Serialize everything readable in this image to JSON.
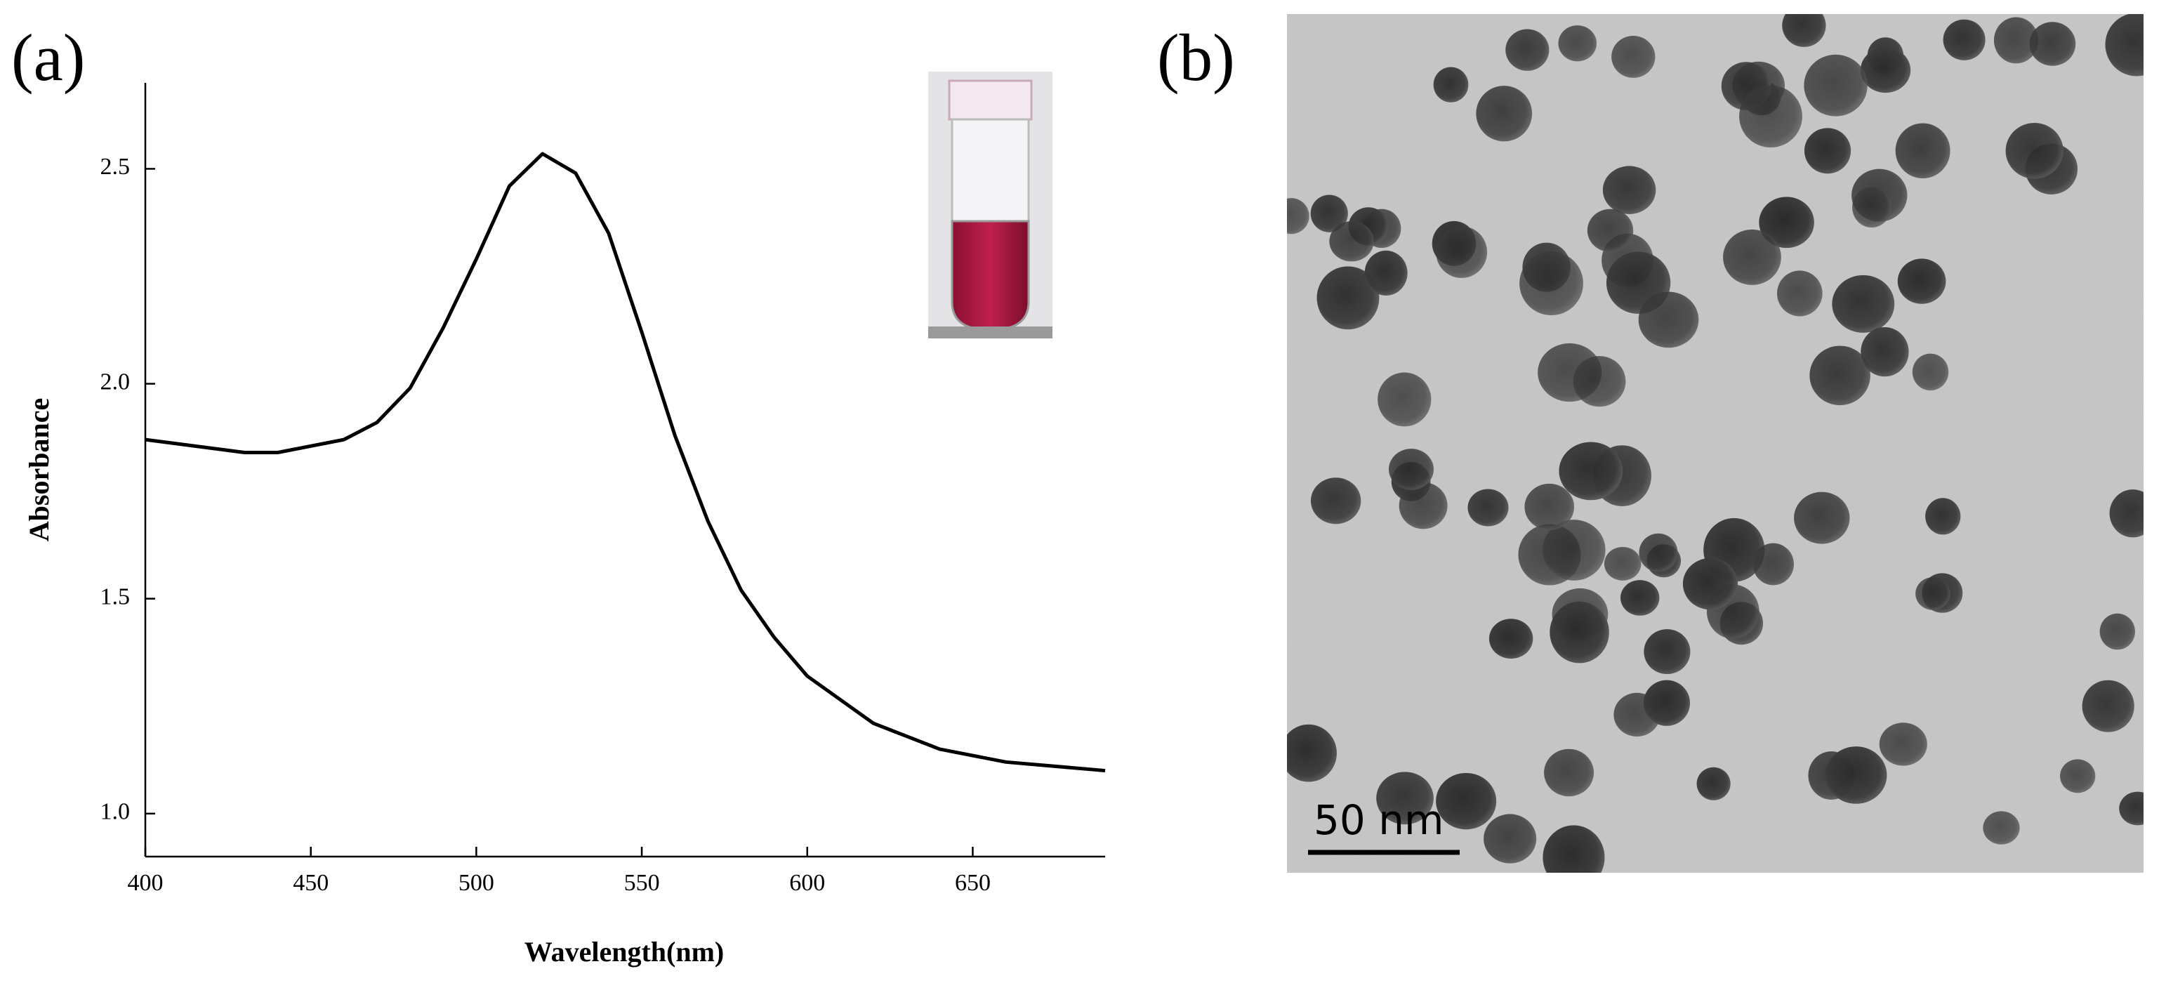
{
  "panel_labels": [
    "(a)",
    "(b)"
  ],
  "tem_image": {
    "scale_bar": "50 nm"
  },
  "chart_data": {
    "type": "line",
    "x_label": "Wavelength(nm)",
    "y_label": "Absorbance",
    "x": [
      400,
      410,
      420,
      430,
      440,
      460,
      470,
      480,
      490,
      500,
      510,
      520,
      530,
      540,
      550,
      560,
      570,
      580,
      590,
      600,
      620,
      640,
      660,
      690
    ],
    "values": [
      1.87,
      1.86,
      1.85,
      1.84,
      1.84,
      1.87,
      1.91,
      1.99,
      2.13,
      2.29,
      2.46,
      2.535,
      2.49,
      2.35,
      2.12,
      1.88,
      1.68,
      1.52,
      1.41,
      1.32,
      1.21,
      1.15,
      1.12,
      1.1
    ],
    "color": "#000000",
    "xlim": [
      400,
      690
    ],
    "ylim": [
      0.9,
      2.7
    ],
    "xticks": [
      400,
      450,
      500,
      550,
      600,
      650
    ],
    "yticks": [
      {
        "value": 1,
        "label": "1.0"
      },
      1.5,
      {
        "value": 2,
        "label": "2.0"
      },
      2.5
    ]
  }
}
